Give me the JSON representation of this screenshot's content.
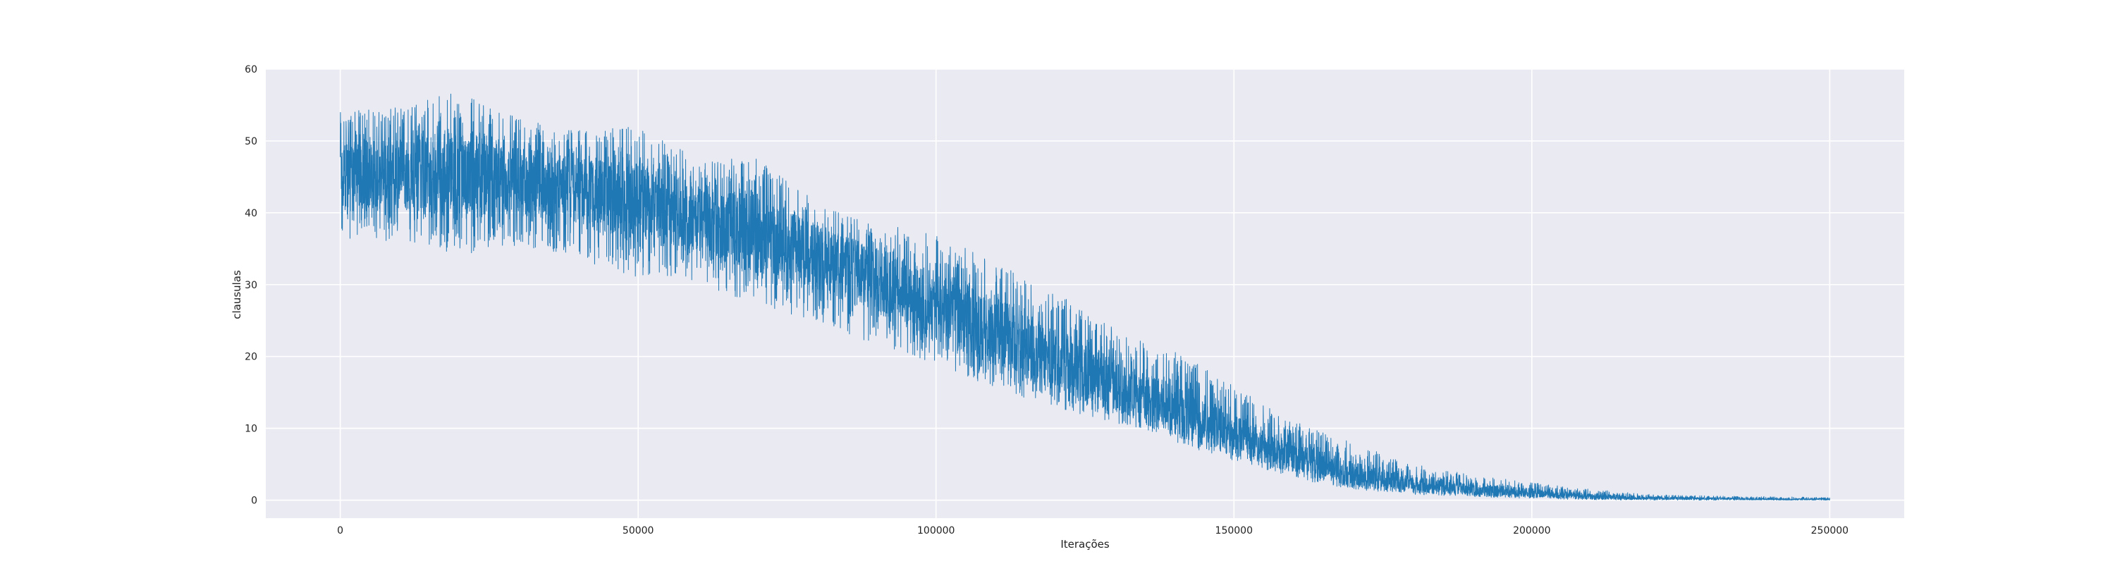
{
  "chart_data": {
    "type": "line",
    "title": "",
    "xlabel": "Iterações",
    "ylabel": "clausulas",
    "xlim": [
      -12500,
      262500
    ],
    "ylim": [
      -2.5,
      60
    ],
    "grid": true,
    "x_ticks": [
      0,
      50000,
      100000,
      150000,
      200000,
      250000
    ],
    "y_ticks": [
      0,
      10,
      20,
      30,
      40,
      50,
      60
    ],
    "series": [
      {
        "color": "#1f77b4",
        "x": [
          0,
          10000,
          20000,
          30000,
          40000,
          50000,
          60000,
          70000,
          80000,
          90000,
          100000,
          110000,
          120000,
          130000,
          140000,
          150000,
          160000,
          170000,
          180000,
          190000,
          200000,
          210000,
          220000,
          230000,
          240000,
          250000
        ],
        "mean": [
          45,
          45.5,
          45.5,
          44.5,
          43,
          41.5,
          39.5,
          37,
          34,
          30.5,
          27,
          23.5,
          19.5,
          16,
          12.5,
          9,
          6,
          3.5,
          2.2,
          1.5,
          1,
          0.5,
          0.3,
          0.2,
          0.15,
          0.1
        ],
        "upper": [
          54,
          55,
          57.3,
          53,
          51.5,
          52,
          47.5,
          47.5,
          41.5,
          38.5,
          37.3,
          33,
          29,
          24,
          21,
          16,
          11,
          8,
          5,
          3.5,
          2.5,
          1.5,
          0.8,
          0.6,
          0.5,
          0.4
        ],
        "lower": [
          36.5,
          36,
          34,
          35.5,
          33.5,
          31,
          30.5,
          26.5,
          25,
          21.5,
          19,
          15.5,
          13,
          10.5,
          8,
          5.5,
          3,
          1.5,
          0.8,
          0.5,
          0.2,
          0.05,
          0,
          0,
          0,
          0
        ]
      }
    ]
  }
}
